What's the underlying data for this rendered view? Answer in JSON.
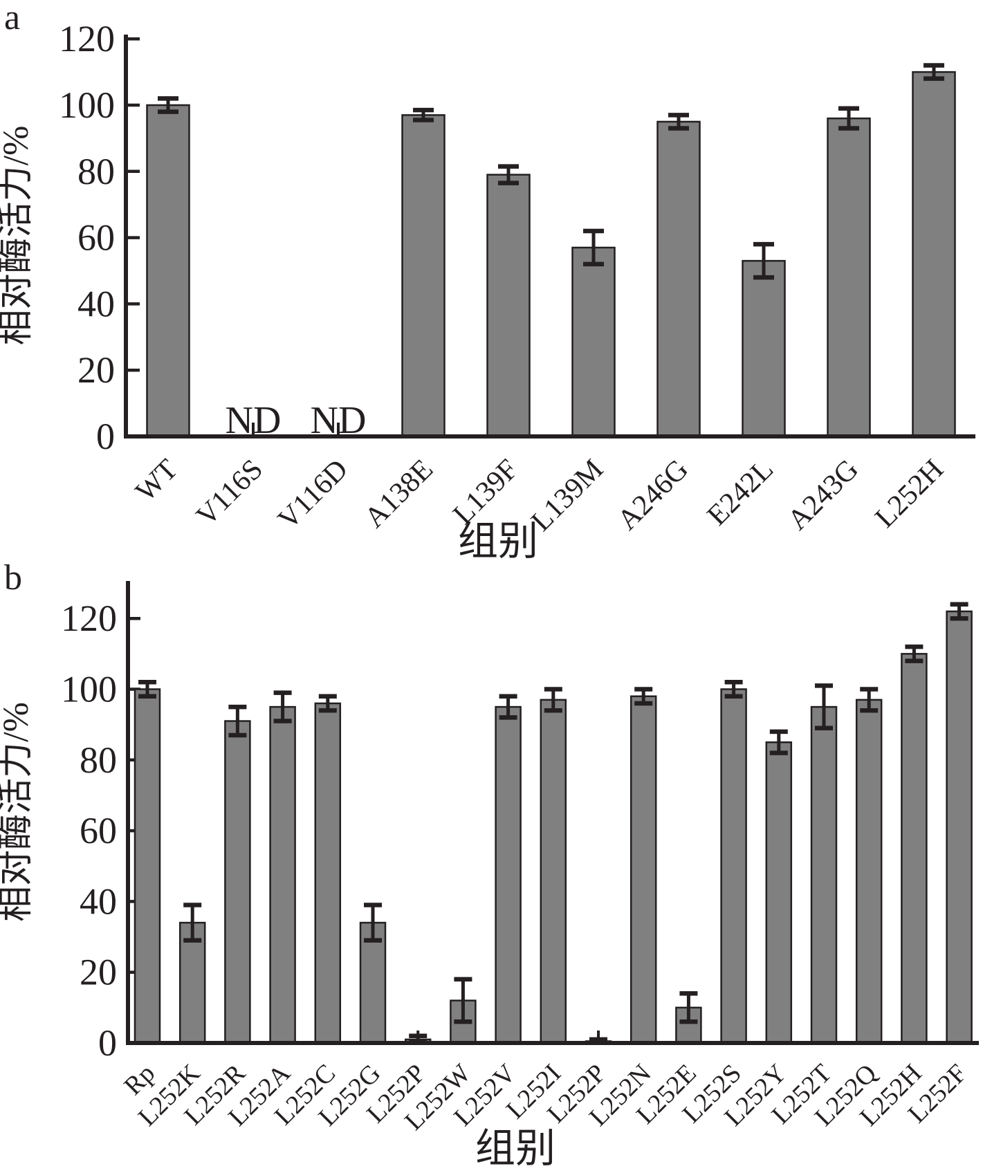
{
  "figure": {
    "panels": [
      {
        "panel_label": "a"
      },
      {
        "panel_label": "b"
      }
    ]
  },
  "chart_data": [
    {
      "type": "bar",
      "panel": "a",
      "title": "",
      "xlabel": "组别",
      "ylabel": "相对酶活力/%",
      "ylim": [
        0,
        120
      ],
      "y_ticks": [
        0,
        20,
        40,
        60,
        80,
        100,
        120
      ],
      "grid": false,
      "legend": "none",
      "bar_color": "#808080",
      "bar_border_color": "#231f20",
      "not_detected_label": "ND",
      "categories": [
        "WT",
        "V116S",
        "V116D",
        "A138E",
        "L139F",
        "L139M",
        "A246G",
        "E242L",
        "A243G",
        "L252H"
      ],
      "values": [
        100,
        null,
        null,
        97,
        79,
        57,
        95,
        53,
        96,
        110
      ],
      "errors": [
        2,
        null,
        null,
        1.5,
        2.5,
        5,
        2,
        5,
        3,
        2
      ],
      "nd_categories": [
        "V116S",
        "V116D"
      ]
    },
    {
      "type": "bar",
      "panel": "b",
      "title": "",
      "xlabel": "组别",
      "ylabel": "相对酶活力/%",
      "ylim": [
        0,
        120
      ],
      "y_ticks": [
        0,
        20,
        40,
        60,
        80,
        100,
        120
      ],
      "grid": false,
      "legend": "none",
      "bar_color": "#808080",
      "bar_border_color": "#231f20",
      "not_detected_label": "",
      "categories": [
        "Rp",
        "L252K",
        "L252R",
        "L252A",
        "L252C",
        "L252G",
        "L252P",
        "L252W",
        "L252V",
        "L252I",
        "L252P",
        "L252N",
        "L252E",
        "L252S",
        "L252Y",
        "L252T",
        "L252Q",
        "L252H",
        "L252F"
      ],
      "values": [
        100,
        34,
        91,
        95,
        96,
        34,
        1,
        12,
        95,
        97,
        0.5,
        98,
        10,
        100,
        85,
        95,
        97,
        110,
        122
      ],
      "errors": [
        2,
        5,
        4,
        4,
        2,
        5,
        1,
        6,
        3,
        3,
        0.5,
        2,
        4,
        2,
        3,
        6,
        3,
        2,
        2
      ],
      "nd_categories": []
    }
  ]
}
